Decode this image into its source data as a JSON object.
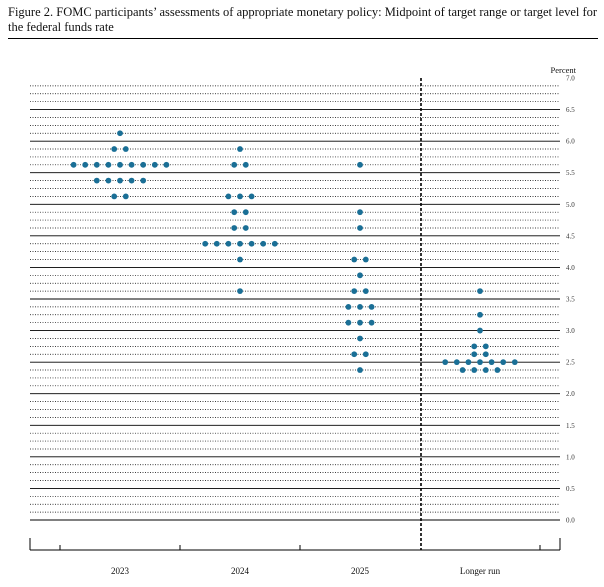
{
  "figure": {
    "title": "Figure 2.  FOMC participants’ assessments of appropriate monetary policy:  Midpoint of target range or target level for the federal funds rate"
  },
  "chart_data": {
    "type": "scatter",
    "ylabel": "Percent",
    "ylim": [
      0,
      7
    ],
    "yticks": [
      "0.0",
      "0.5",
      "1.0",
      "1.5",
      "2.0",
      "2.5",
      "3.0",
      "3.5",
      "4.0",
      "4.5",
      "5.0",
      "5.5",
      "6.0",
      "6.5",
      "7.0"
    ],
    "categories": [
      "2023",
      "2024",
      "2025",
      "Longer run"
    ],
    "marker_color": "#1a6f96",
    "series": [
      {
        "category": "2023",
        "rates": [
          {
            "value": 6.125,
            "count": 1
          },
          {
            "value": 5.875,
            "count": 2
          },
          {
            "value": 5.625,
            "count": 9
          },
          {
            "value": 5.375,
            "count": 5
          },
          {
            "value": 5.125,
            "count": 2
          }
        ]
      },
      {
        "category": "2024",
        "rates": [
          {
            "value": 5.875,
            "count": 1
          },
          {
            "value": 5.625,
            "count": 2
          },
          {
            "value": 5.125,
            "count": 3
          },
          {
            "value": 4.875,
            "count": 2
          },
          {
            "value": 4.625,
            "count": 2
          },
          {
            "value": 4.375,
            "count": 7
          },
          {
            "value": 4.125,
            "count": 1
          },
          {
            "value": 3.625,
            "count": 1
          }
        ]
      },
      {
        "category": "2025",
        "rates": [
          {
            "value": 5.625,
            "count": 1
          },
          {
            "value": 4.875,
            "count": 1
          },
          {
            "value": 4.625,
            "count": 1
          },
          {
            "value": 4.125,
            "count": 2
          },
          {
            "value": 3.875,
            "count": 1
          },
          {
            "value": 3.625,
            "count": 2
          },
          {
            "value": 3.375,
            "count": 3
          },
          {
            "value": 3.125,
            "count": 3
          },
          {
            "value": 2.875,
            "count": 1
          },
          {
            "value": 2.625,
            "count": 2
          },
          {
            "value": 2.375,
            "count": 1
          }
        ]
      },
      {
        "category": "Longer run",
        "rates": [
          {
            "value": 3.625,
            "count": 1
          },
          {
            "value": 3.25,
            "count": 1
          },
          {
            "value": 3.0,
            "count": 1
          },
          {
            "value": 2.75,
            "count": 2
          },
          {
            "value": 2.625,
            "count": 2
          },
          {
            "value": 2.5,
            "count": 7
          },
          {
            "value": 2.375,
            "count": 4
          }
        ]
      }
    ]
  }
}
